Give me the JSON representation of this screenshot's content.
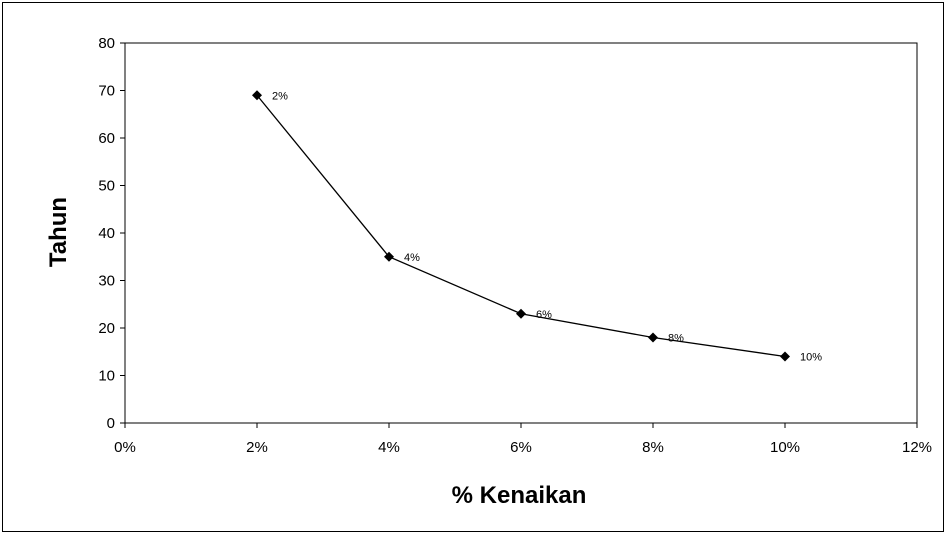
{
  "chart_data": {
    "type": "line",
    "title": "",
    "xlabel": "% Kenaikan",
    "ylabel": "Tahun",
    "x_ticks": [
      "0%",
      "2%",
      "4%",
      "6%",
      "8%",
      "10%",
      "12%"
    ],
    "y_ticks": [
      "0",
      "10",
      "20",
      "30",
      "40",
      "50",
      "60",
      "70",
      "80"
    ],
    "xlim": [
      0,
      12
    ],
    "ylim": [
      0,
      80
    ],
    "grid": false,
    "legend": "none",
    "series": [
      {
        "x": [
          2,
          4,
          6,
          8,
          10
        ],
        "y": [
          69,
          35,
          23,
          18,
          14
        ],
        "labels": [
          "2%",
          "4%",
          "6%",
          "8%",
          "10%"
        ],
        "color": "#000000",
        "marker": "diamond"
      }
    ]
  }
}
